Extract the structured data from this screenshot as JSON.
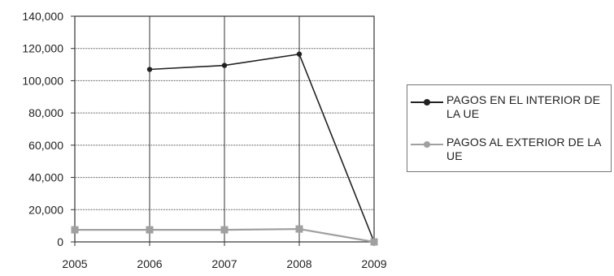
{
  "chart_data": {
    "type": "line",
    "categories": [
      "2005",
      "2006",
      "2007",
      "2008",
      "2009"
    ],
    "series": [
      {
        "name": "PAGOS EN EL INTERIOR DE LA UE",
        "values": [
          null,
          107000,
          109500,
          116500,
          0
        ],
        "color": "#222222"
      },
      {
        "name": "PAGOS AL EXTERIOR DE LA UE",
        "values": [
          7500,
          7500,
          7500,
          8000,
          0
        ],
        "color": "#a0a0a0"
      }
    ],
    "y_ticks": [
      "0",
      "20,000",
      "40,000",
      "60,000",
      "80,000",
      "100,000",
      "120,000",
      "140,000"
    ],
    "ylim": [
      0,
      140000
    ],
    "title": "",
    "xlabel": "",
    "ylabel": "",
    "grid": true,
    "legend_position": "right"
  }
}
